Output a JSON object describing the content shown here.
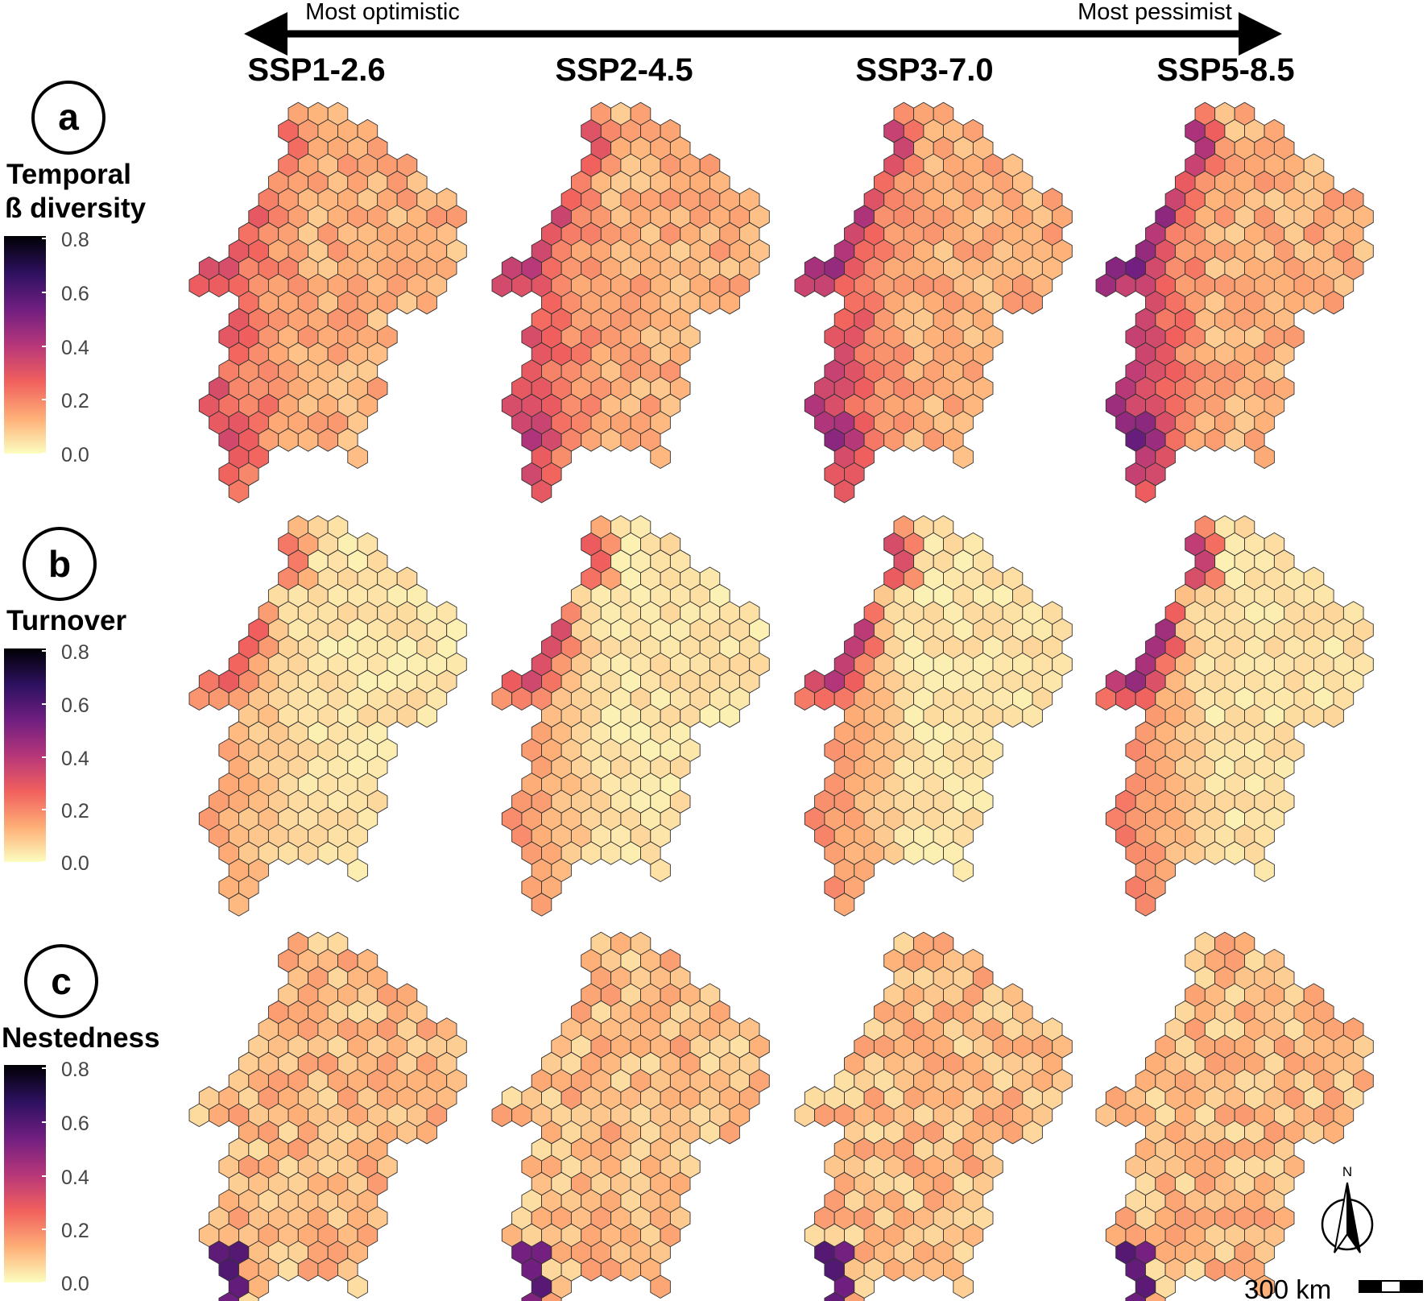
{
  "header": {
    "arrow_left_label": "Most optimistic",
    "arrow_right_label": "Most pessimist",
    "scenarios": [
      "SSP1-2.6",
      "SSP2-4.5",
      "SSP3-7.0",
      "SSP5-8.5"
    ]
  },
  "rows": [
    {
      "letter": "a",
      "title_lines": [
        "Temporal",
        "ß diversity"
      ],
      "legend_ticks": [
        "0.8",
        "0.6",
        "0.4",
        "0.2",
        "0.0"
      ]
    },
    {
      "letter": "b",
      "title_lines": [
        "Turnover"
      ],
      "legend_ticks": [
        "0.8",
        "0.6",
        "0.4",
        "0.2",
        "0.0"
      ]
    },
    {
      "letter": "c",
      "title_lines": [
        "Nestedness"
      ],
      "legend_ticks": [
        "0.8",
        "0.6",
        "0.4",
        "0.2",
        "0.0"
      ]
    }
  ],
  "colors": {
    "scale": [
      "#fcfdbf",
      "#feb078",
      "#f1605d",
      "#b5367a",
      "#721f81",
      "#2d1160",
      "#000004"
    ],
    "hex_stroke": "#333333"
  },
  "legend_range": [
    0.0,
    0.8
  ],
  "north_arrow_label": "N",
  "scale_bar_label": "300 km",
  "icons": {
    "north_arrow": "north-arrow-icon",
    "scale_bar": "scale-bar-icon"
  }
}
